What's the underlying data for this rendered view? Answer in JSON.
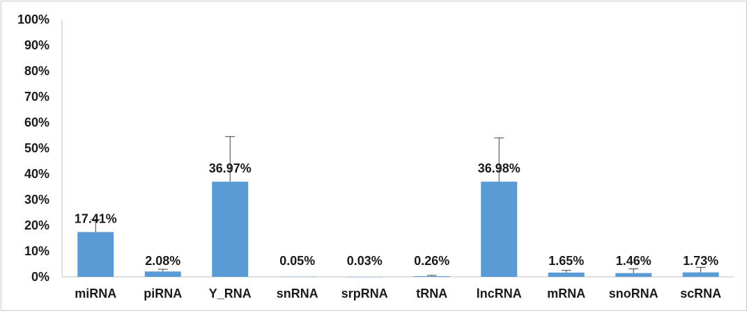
{
  "chart_data": {
    "type": "bar",
    "title": "",
    "xlabel": "",
    "ylabel": "",
    "ylim": [
      0,
      1
    ],
    "y_tick_values": [
      0,
      0.1,
      0.2,
      0.3,
      0.4,
      0.5,
      0.6,
      0.7,
      0.8,
      0.9,
      1.0
    ],
    "y_tick_labels": [
      "0%",
      "10%",
      "20%",
      "30%",
      "40%",
      "50%",
      "60%",
      "70%",
      "80%",
      "90%",
      "100%"
    ],
    "grid": false,
    "legend": "none",
    "bar_color": "#5b9bd5",
    "categories": [
      "miRNA",
      "piRNA",
      "Y_RNA",
      "snRNA",
      "srpRNA",
      "tRNA",
      "lncRNA",
      "mRNA",
      "snoRNA",
      "scRNA"
    ],
    "values": [
      0.1741,
      0.0208,
      0.3697,
      0.0005,
      0.0003,
      0.0026,
      0.3698,
      0.0165,
      0.0146,
      0.0173
    ],
    "error_upper": [
      0.2225,
      0.0295,
      0.545,
      0.0008,
      0.0005,
      0.0055,
      0.54,
      0.025,
      0.031,
      0.037
    ],
    "data_labels": [
      "17.41%",
      "2.08%",
      "36.97%",
      "0.05%",
      "0.03%",
      "0.26%",
      "36.98%",
      "1.65%",
      "1.46%",
      "1.73%"
    ]
  }
}
